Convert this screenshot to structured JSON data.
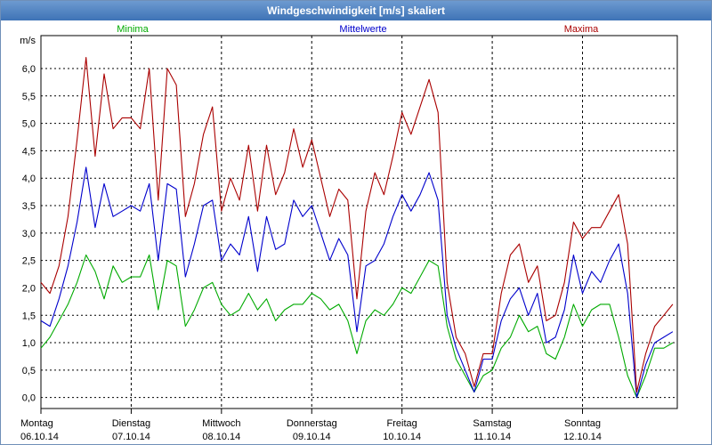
{
  "window": {
    "title": "Windgeschwindigkeit [m/s] skaliert"
  },
  "colors": {
    "minima": "#00aa00",
    "mittelwerte": "#0000cc",
    "maxima": "#aa0000",
    "grid": "#000000",
    "titlebar": "#4a7fc0"
  },
  "chart_data": {
    "type": "line",
    "title": "Windgeschwindigkeit [m/s] skaliert",
    "ylabel": "m/s",
    "ylim": [
      -0.2,
      6.6
    ],
    "yticks": [
      "0,0",
      "0,5",
      "1,0",
      "1,5",
      "2,0",
      "2,5",
      "3,0",
      "3,5",
      "4,0",
      "4,5",
      "5,0",
      "5,5",
      "6,0"
    ],
    "ytick_values": [
      0,
      0.5,
      1,
      1.5,
      2,
      2.5,
      3,
      3.5,
      4,
      4.5,
      5,
      5.5,
      6
    ],
    "xlim": [
      0,
      7.05
    ],
    "xticks": [
      {
        "day": "Montag",
        "date": "06.10.14"
      },
      {
        "day": "Dienstag",
        "date": "07.10.14"
      },
      {
        "day": "Mittwoch",
        "date": "08.10.14"
      },
      {
        "day": "Donnerstag",
        "date": "09.10.14"
      },
      {
        "day": "Freitag",
        "date": "10.10.14"
      },
      {
        "day": "Samstag",
        "date": "11.10.14"
      },
      {
        "day": "Sonntag",
        "date": "12.10.14"
      }
    ],
    "grid": true,
    "series": [
      {
        "name": "Minima",
        "color": "#00aa00",
        "x": [
          0,
          0.1,
          0.2,
          0.3,
          0.4,
          0.5,
          0.6,
          0.7,
          0.8,
          0.9,
          1,
          1.1,
          1.2,
          1.3,
          1.4,
          1.5,
          1.6,
          1.7,
          1.8,
          1.9,
          2,
          2.1,
          2.2,
          2.3,
          2.4,
          2.5,
          2.6,
          2.7,
          2.8,
          2.9,
          3,
          3.1,
          3.2,
          3.3,
          3.4,
          3.5,
          3.6,
          3.7,
          3.8,
          3.9,
          4,
          4.1,
          4.2,
          4.3,
          4.4,
          4.5,
          4.6,
          4.7,
          4.8,
          4.9,
          5,
          5.1,
          5.2,
          5.3,
          5.4,
          5.5,
          5.6,
          5.7,
          5.8,
          5.9,
          6,
          6.1,
          6.2,
          6.3,
          6.4,
          6.5,
          6.6,
          6.7,
          6.8,
          6.9,
          7.0
        ],
        "values": [
          0.9,
          1.1,
          1.4,
          1.7,
          2.1,
          2.6,
          2.3,
          1.8,
          2.4,
          2.1,
          2.2,
          2.2,
          2.6,
          1.6,
          2.5,
          2.4,
          1.3,
          1.6,
          2.0,
          2.1,
          1.7,
          1.5,
          1.6,
          1.9,
          1.6,
          1.8,
          1.4,
          1.6,
          1.7,
          1.7,
          1.9,
          1.8,
          1.6,
          1.7,
          1.4,
          0.8,
          1.4,
          1.6,
          1.5,
          1.7,
          2.0,
          1.9,
          2.2,
          2.5,
          2.4,
          1.3,
          0.7,
          0.4,
          0.1,
          0.4,
          0.5,
          0.9,
          1.1,
          1.5,
          1.2,
          1.3,
          0.8,
          0.7,
          1.1,
          1.7,
          1.3,
          1.6,
          1.7,
          1.7,
          1.1,
          0.4,
          0.0,
          0.4,
          0.9,
          0.9,
          1.0
        ]
      },
      {
        "name": "Mittelwerte",
        "color": "#0000cc",
        "x": [
          0,
          0.1,
          0.2,
          0.3,
          0.4,
          0.5,
          0.6,
          0.7,
          0.8,
          0.9,
          1,
          1.1,
          1.2,
          1.3,
          1.4,
          1.5,
          1.6,
          1.7,
          1.8,
          1.9,
          2,
          2.1,
          2.2,
          2.3,
          2.4,
          2.5,
          2.6,
          2.7,
          2.8,
          2.9,
          3,
          3.1,
          3.2,
          3.3,
          3.4,
          3.5,
          3.6,
          3.7,
          3.8,
          3.9,
          4,
          4.1,
          4.2,
          4.3,
          4.4,
          4.5,
          4.6,
          4.7,
          4.8,
          4.9,
          5,
          5.1,
          5.2,
          5.3,
          5.4,
          5.5,
          5.6,
          5.7,
          5.8,
          5.9,
          6,
          6.1,
          6.2,
          6.3,
          6.4,
          6.5,
          6.6,
          6.7,
          6.8,
          6.9,
          7.0
        ],
        "values": [
          1.4,
          1.3,
          1.8,
          2.4,
          3.2,
          4.2,
          3.1,
          3.9,
          3.3,
          3.4,
          3.5,
          3.4,
          3.9,
          2.5,
          3.9,
          3.8,
          2.2,
          2.8,
          3.5,
          3.6,
          2.5,
          2.8,
          2.6,
          3.3,
          2.3,
          3.3,
          2.7,
          2.8,
          3.6,
          3.3,
          3.5,
          3.0,
          2.5,
          2.9,
          2.6,
          1.2,
          2.4,
          2.5,
          2.8,
          3.3,
          3.7,
          3.4,
          3.7,
          4.1,
          3.6,
          1.5,
          0.9,
          0.5,
          0.1,
          0.7,
          0.7,
          1.4,
          1.8,
          2.0,
          1.5,
          1.9,
          1.0,
          1.1,
          1.6,
          2.6,
          1.9,
          2.3,
          2.1,
          2.5,
          2.8,
          1.9,
          0.0,
          0.6,
          1.0,
          1.1,
          1.2
        ]
      },
      {
        "name": "Maxima",
        "color": "#aa0000",
        "x": [
          0,
          0.1,
          0.2,
          0.3,
          0.4,
          0.5,
          0.6,
          0.7,
          0.8,
          0.9,
          1,
          1.1,
          1.2,
          1.3,
          1.4,
          1.5,
          1.6,
          1.7,
          1.8,
          1.9,
          2,
          2.1,
          2.2,
          2.3,
          2.4,
          2.5,
          2.6,
          2.7,
          2.8,
          2.9,
          3,
          3.1,
          3.2,
          3.3,
          3.4,
          3.5,
          3.6,
          3.7,
          3.8,
          3.9,
          4,
          4.1,
          4.2,
          4.3,
          4.4,
          4.5,
          4.6,
          4.7,
          4.8,
          4.9,
          5,
          5.1,
          5.2,
          5.3,
          5.4,
          5.5,
          5.6,
          5.7,
          5.8,
          5.9,
          6,
          6.1,
          6.2,
          6.3,
          6.4,
          6.5,
          6.6,
          6.7,
          6.8,
          6.9,
          7.0
        ],
        "values": [
          2.1,
          1.9,
          2.4,
          3.3,
          4.7,
          6.2,
          4.4,
          5.9,
          4.9,
          5.1,
          5.1,
          4.9,
          6.0,
          3.6,
          6.0,
          5.7,
          3.3,
          3.9,
          4.8,
          5.3,
          3.4,
          4.0,
          3.6,
          4.6,
          3.4,
          4.6,
          3.7,
          4.1,
          4.9,
          4.2,
          4.7,
          4.0,
          3.3,
          3.8,
          3.6,
          1.8,
          3.4,
          4.1,
          3.7,
          4.4,
          5.2,
          4.8,
          5.3,
          5.8,
          5.2,
          2.1,
          1.1,
          0.8,
          0.2,
          0.8,
          0.8,
          1.9,
          2.6,
          2.8,
          2.1,
          2.4,
          1.4,
          1.5,
          2.1,
          3.2,
          2.9,
          3.1,
          3.1,
          3.4,
          3.7,
          2.8,
          0.1,
          0.8,
          1.3,
          1.5,
          1.7
        ]
      }
    ]
  }
}
